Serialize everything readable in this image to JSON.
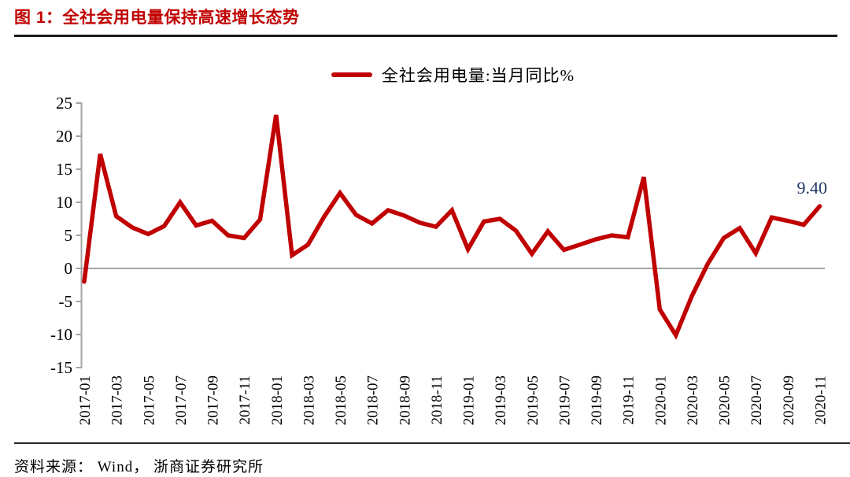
{
  "figure": {
    "title": "图 1：全社会用电量保持高速增长态势",
    "source": "资料来源： Wind， 浙商证券研究所"
  },
  "chart_data": {
    "type": "line",
    "legend": "全社会用电量:当月同比%",
    "series_name": "全社会用电量:当月同比%",
    "x": [
      "2017-01",
      "2017-02",
      "2017-03",
      "2017-04",
      "2017-05",
      "2017-06",
      "2017-07",
      "2017-08",
      "2017-09",
      "2017-10",
      "2017-11",
      "2017-12",
      "2018-01",
      "2018-02",
      "2018-03",
      "2018-04",
      "2018-05",
      "2018-06",
      "2018-07",
      "2018-08",
      "2018-09",
      "2018-10",
      "2018-11",
      "2018-12",
      "2019-01",
      "2019-02",
      "2019-03",
      "2019-04",
      "2019-05",
      "2019-06",
      "2019-07",
      "2019-08",
      "2019-09",
      "2019-10",
      "2019-11",
      "2019-12",
      "2020-01",
      "2020-02",
      "2020-03",
      "2020-04",
      "2020-05",
      "2020-06",
      "2020-07",
      "2020-08",
      "2020-09",
      "2020-10",
      "2020-11"
    ],
    "values": [
      -2.0,
      17.3,
      7.9,
      6.2,
      5.2,
      6.4,
      10.0,
      6.5,
      7.2,
      5.0,
      4.6,
      7.4,
      23.2,
      2.0,
      3.6,
      7.8,
      11.4,
      8.1,
      6.8,
      8.8,
      8.0,
      6.9,
      6.3,
      8.8,
      2.9,
      7.1,
      7.5,
      5.7,
      2.2,
      5.6,
      2.8,
      3.6,
      4.4,
      5.0,
      4.7,
      13.8,
      -6.2,
      -10.1,
      -4.2,
      0.7,
      4.6,
      6.1,
      2.3,
      7.7,
      7.2,
      6.6,
      9.4
    ],
    "x_tick_labels": [
      "2017-01",
      "2017-03",
      "2017-05",
      "2017-07",
      "2017-09",
      "2017-11",
      "2018-01",
      "2018-03",
      "2018-05",
      "2018-07",
      "2018-09",
      "2018-11",
      "2019-01",
      "2019-03",
      "2019-05",
      "2019-07",
      "2019-09",
      "2019-11",
      "2020-01",
      "2020-03",
      "2020-05",
      "2020-07",
      "2020-09",
      "2020-11"
    ],
    "x_tick_every": 2,
    "y_ticks": [
      25,
      20,
      15,
      10,
      5,
      0,
      -5,
      -10,
      -15
    ],
    "ylim": [
      -15,
      25
    ],
    "grid": "zero-line-only",
    "legend_position": "top-center",
    "annotation": {
      "text": "9.40",
      "x": "2020-11",
      "value": 9.4
    },
    "colors": {
      "line": "#c00000",
      "title": "#c00000",
      "annotation": "#1f3864",
      "axis": "#a3a3a3",
      "text": "#000000"
    }
  }
}
